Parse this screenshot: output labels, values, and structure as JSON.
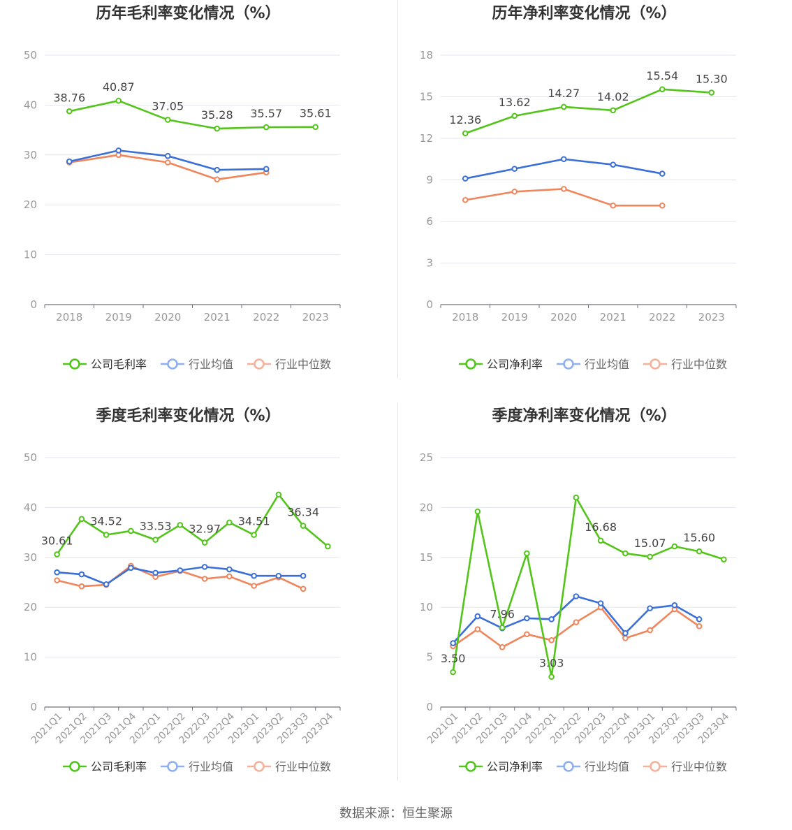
{
  "source_label": "数据来源：恒生聚源",
  "colors": {
    "company": "#52c41a",
    "avg": "#3a6fd8",
    "median": "#f0845a"
  },
  "chart_data": [
    {
      "type": "line",
      "title": "历年毛利率变化情况（%）",
      "categories": [
        "2018",
        "2019",
        "2020",
        "2021",
        "2022",
        "2023"
      ],
      "ylim": [
        0,
        50
      ],
      "yticks": [
        "0",
        "10",
        "20",
        "30",
        "40",
        "50"
      ],
      "grid": true,
      "legend": "bottom",
      "series": [
        {
          "name": "公司毛利率",
          "key": "company",
          "values": [
            38.76,
            40.87,
            37.05,
            35.28,
            35.57,
            35.61
          ],
          "labels": [
            "38.76",
            "40.87",
            "37.05",
            "35.28",
            "35.57",
            "35.61"
          ]
        },
        {
          "name": "行业均值",
          "key": "avg",
          "values": [
            28.7,
            30.9,
            29.8,
            27.0,
            27.2,
            null
          ]
        },
        {
          "name": "行业中位数",
          "key": "median",
          "values": [
            28.5,
            30.0,
            28.5,
            25.1,
            26.5,
            null
          ]
        }
      ]
    },
    {
      "type": "line",
      "title": "历年净利率变化情况（%）",
      "categories": [
        "2018",
        "2019",
        "2020",
        "2021",
        "2022",
        "2023"
      ],
      "ylim": [
        0,
        18
      ],
      "yticks": [
        "0",
        "3",
        "6",
        "9",
        "12",
        "15",
        "18"
      ],
      "grid": true,
      "legend": "bottom",
      "series": [
        {
          "name": "公司净利率",
          "key": "company",
          "values": [
            12.36,
            13.62,
            14.27,
            14.02,
            15.54,
            15.3
          ],
          "labels": [
            "12.36",
            "13.62",
            "14.27",
            "14.02",
            "15.54",
            "15.30"
          ]
        },
        {
          "name": "行业均值",
          "key": "avg",
          "values": [
            9.1,
            9.8,
            10.5,
            10.1,
            9.45,
            null
          ]
        },
        {
          "name": "行业中位数",
          "key": "median",
          "values": [
            7.55,
            8.15,
            8.35,
            7.15,
            7.15,
            null
          ]
        }
      ]
    },
    {
      "type": "line",
      "title": "季度毛利率变化情况（%）",
      "categories": [
        "2021Q1",
        "2021Q2",
        "2021Q3",
        "2021Q4",
        "2022Q1",
        "2022Q2",
        "2022Q3",
        "2022Q4",
        "2023Q1",
        "2023Q2",
        "2023Q3",
        "2023Q4"
      ],
      "ylim": [
        0,
        50
      ],
      "yticks": [
        "0",
        "10",
        "20",
        "30",
        "40",
        "50"
      ],
      "grid": true,
      "legend": "bottom",
      "series": [
        {
          "name": "公司毛利率",
          "key": "company",
          "values": [
            30.61,
            37.7,
            34.52,
            35.3,
            33.53,
            36.5,
            32.97,
            37.0,
            34.51,
            42.6,
            36.34,
            32.2
          ],
          "labels": [
            "30.61",
            "",
            "34.52",
            "",
            "33.53",
            "",
            "32.97",
            "",
            "34.51",
            "",
            "36.34",
            ""
          ]
        },
        {
          "name": "行业均值",
          "key": "avg",
          "values": [
            27.0,
            26.6,
            24.6,
            27.9,
            26.9,
            27.4,
            28.1,
            27.6,
            26.3,
            26.3,
            26.3,
            null
          ]
        },
        {
          "name": "行业中位数",
          "key": "median",
          "values": [
            25.4,
            24.2,
            24.5,
            28.3,
            26.1,
            27.3,
            25.7,
            26.2,
            24.3,
            26.0,
            23.7,
            null
          ]
        }
      ]
    },
    {
      "type": "line",
      "title": "季度净利率变化情况（%）",
      "categories": [
        "2021Q1",
        "2021Q2",
        "2021Q3",
        "2021Q4",
        "2022Q1",
        "2022Q2",
        "2022Q3",
        "2022Q4",
        "2023Q1",
        "2023Q2",
        "2023Q3",
        "2023Q4"
      ],
      "ylim": [
        0,
        25
      ],
      "yticks": [
        "0",
        "5",
        "10",
        "15",
        "20",
        "25"
      ],
      "grid": true,
      "legend": "bottom",
      "series": [
        {
          "name": "公司净利率",
          "key": "company",
          "values": [
            3.5,
            19.6,
            7.96,
            15.4,
            3.03,
            21.0,
            16.68,
            15.4,
            15.07,
            16.1,
            15.6,
            14.8
          ],
          "labels": [
            "3.50",
            "",
            "7.96",
            "",
            "3.03",
            "",
            "16.68",
            "",
            "15.07",
            "",
            "15.60",
            ""
          ]
        },
        {
          "name": "行业均值",
          "key": "avg",
          "values": [
            6.4,
            9.1,
            7.9,
            8.9,
            8.8,
            11.1,
            10.4,
            7.4,
            9.9,
            10.2,
            8.8,
            null
          ]
        },
        {
          "name": "行业中位数",
          "key": "median",
          "values": [
            6.1,
            7.8,
            6.0,
            7.3,
            6.7,
            8.5,
            10.0,
            6.9,
            7.7,
            9.8,
            8.1,
            null
          ]
        }
      ]
    }
  ]
}
